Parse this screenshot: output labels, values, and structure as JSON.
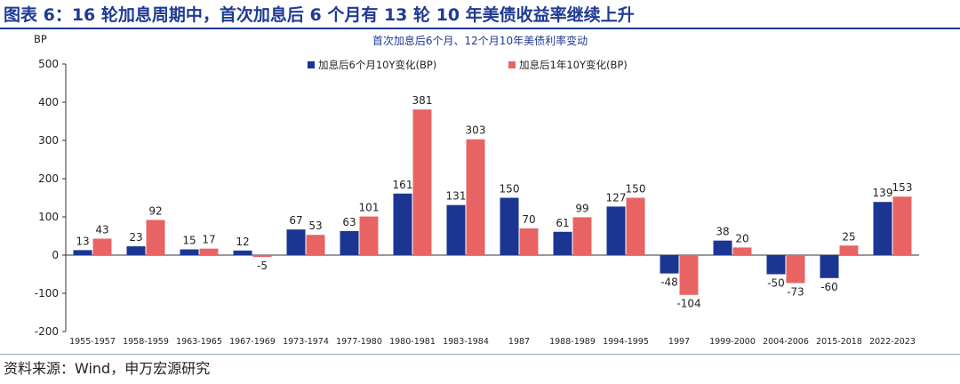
{
  "figure": {
    "title": "图表 6：16 轮加息周期中，首次加息后 6 个月有 13 轮 10 年美债收益率继续上升",
    "source": "资料来源：Wind，申万宏源研究"
  },
  "chart_data": {
    "type": "bar",
    "title": "首次加息后6个月、12个月10年美债利率变动",
    "ylabel": "BP",
    "ylim": [
      -200,
      500
    ],
    "yticks": [
      -200,
      -100,
      0,
      100,
      200,
      300,
      400,
      500
    ],
    "grid": false,
    "legend_position": "top",
    "categories": [
      "1955-1957",
      "1958-1959",
      "1963-1965",
      "1967-1969",
      "1973-1974",
      "1977-1980",
      "1980-1981",
      "1983-1984",
      "1987",
      "1988-1989",
      "1994-1995",
      "1997",
      "1999-2000",
      "2004-2006",
      "2015-2018",
      "2022-2023"
    ],
    "series": [
      {
        "name": "加息后6个月10Y变化(BP)",
        "color": "#1a3592",
        "values": [
          13,
          23,
          15,
          12,
          67,
          63,
          161,
          131,
          150,
          61,
          127,
          -48,
          38,
          -50,
          -60,
          139
        ]
      },
      {
        "name": "加息后1年10Y变化(BP)",
        "color": "#e86464",
        "values": [
          43,
          92,
          17,
          -5,
          53,
          101,
          381,
          303,
          70,
          99,
          150,
          -104,
          20,
          -73,
          25,
          153
        ]
      }
    ]
  }
}
